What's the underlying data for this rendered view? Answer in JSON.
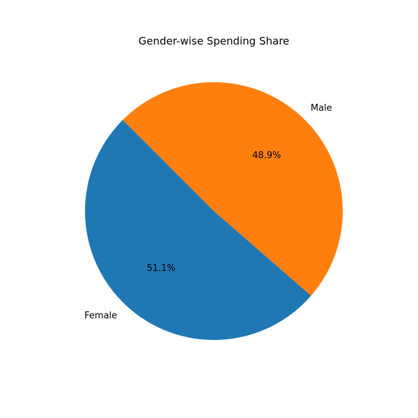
{
  "chart_data": {
    "type": "pie",
    "title": "Gender-wise Spending Share",
    "categories": [
      "Female",
      "Male"
    ],
    "values": [
      51.1,
      48.9
    ],
    "percent_labels": [
      "51.1%",
      "48.9%"
    ],
    "colors": [
      "#1f77b4",
      "#ff7f0e"
    ],
    "start_angle_deg": 135,
    "direction": "counterclockwise",
    "legend": "none"
  }
}
